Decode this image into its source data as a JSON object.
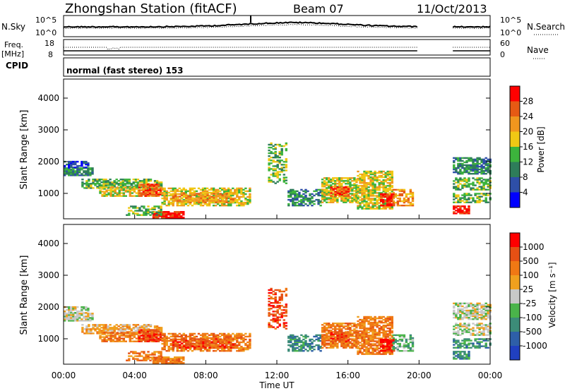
{
  "header": {
    "station": "Zhongshan Station (fitACF)",
    "beam": "Beam 07",
    "date": "11/Oct/2013"
  },
  "strip_nsky": {
    "label": "N.Sky",
    "right_label": "N.Search",
    "left_ticks": [
      "10^5",
      "10^0"
    ],
    "right_ticks": [
      "10^5",
      "10^0"
    ]
  },
  "strip_freq": {
    "label_1": "Freq.",
    "label_2": "[MHz]",
    "right_label": "Nave",
    "left_ticks": [
      "18",
      "8"
    ],
    "right_ticks": [
      "60",
      "0"
    ]
  },
  "cpid": {
    "label": "CPID",
    "value": "normal (fast stereo) 153"
  },
  "colors": {
    "power": [
      "#0000ff",
      "#2e4fa8",
      "#2e7d5a",
      "#3cb43c",
      "#f0c814",
      "#f0961e",
      "#e65a14",
      "#ff0000"
    ],
    "velocity": [
      "#2040c0",
      "#2e5fa8",
      "#3c8c78",
      "#4ab44a",
      "#c8c8c8",
      "#f0a01e",
      "#f07814",
      "#e65014",
      "#ff0000"
    ]
  },
  "chart_data": [
    {
      "type": "heatmap",
      "panel": "power",
      "ylabel": "Slant Range [km]",
      "xlim": [
        0,
        24
      ],
      "ylim": [
        200,
        4600
      ],
      "y_ticks": [
        "1000",
        "2000",
        "3000",
        "4000"
      ],
      "colorbar": {
        "label": "Power [dB]",
        "ticks": [
          "4",
          "8",
          "12",
          "16",
          "20",
          "24",
          "28"
        ]
      },
      "data_gap_hours": [
        20.0,
        21.9
      ]
    },
    {
      "type": "heatmap",
      "panel": "velocity",
      "ylabel": "Slant Range [km]",
      "xlabel": "Time UT",
      "xlim": [
        0,
        24
      ],
      "ylim": [
        200,
        4600
      ],
      "y_ticks": [
        "1000",
        "2000",
        "3000",
        "4000"
      ],
      "x_ticks": [
        "00:00",
        "04:00",
        "08:00",
        "12:00",
        "16:00",
        "20:00",
        "00:00"
      ],
      "colorbar": {
        "label": "Velocity [m s⁻¹]",
        "ticks": [
          "1000",
          "500",
          "100",
          "25",
          "-25",
          "-100",
          "-500",
          "-1000"
        ]
      },
      "data_gap_hours": [
        20.0,
        21.9
      ]
    }
  ]
}
